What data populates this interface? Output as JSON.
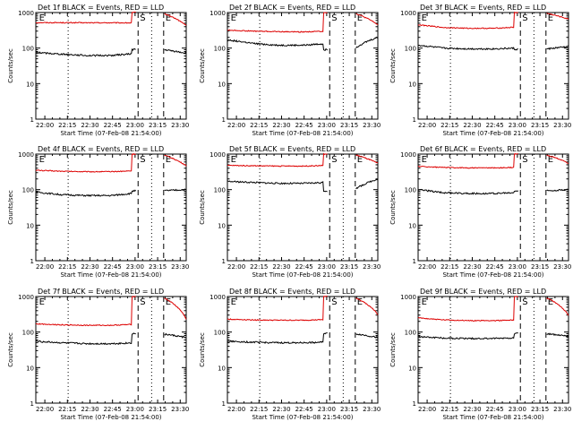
{
  "panel_titles": [
    "Det 1f BLACK = Events, RED = LLD",
    "Det 2f BLACK = Events, RED = LLD",
    "Det 3f BLACK = Events, RED = LLD",
    "Det 4f BLACK = Events, RED = LLD",
    "Det 5f BLACK = Events, RED = LLD",
    "Det 6f BLACK = Events, RED = LLD",
    "Det 7f BLACK = Events, RED = LLD",
    "Det 8f BLACK = Events, RED = LLD",
    "Det 9f BLACK = Events, RED = LLD"
  ],
  "colors": {
    "events": "#000000",
    "lld": "#dd0000",
    "axes": "#000000",
    "background": "#ffffff"
  },
  "chart_data": {
    "type": "line",
    "layout": "3x3 small multiples",
    "xlabel": "Start Time (07-Feb-08 21:54:00)",
    "ylabel": "Counts/sec",
    "x_tick_labels": [
      "22:00",
      "22:15",
      "22:30",
      "22:45",
      "23:00",
      "23:15",
      "23:30"
    ],
    "x_ticks_min": [
      6,
      21,
      36,
      51,
      66,
      81,
      96
    ],
    "xlim_min": [
      0,
      100
    ],
    "ylim": [
      1,
      1000
    ],
    "yscale": "log",
    "y_tick_labels": [
      "1",
      "10",
      "100",
      "1000"
    ],
    "y_ticks": [
      1,
      10,
      100,
      1000
    ],
    "markers": [
      {
        "label": "E",
        "x_min": 1,
        "style": "none"
      },
      {
        "label": "",
        "x_min": 21.5,
        "style": "dotted"
      },
      {
        "label": "S",
        "x_min": 68,
        "style": "dashed"
      },
      {
        "label": "",
        "x_min": 77,
        "style": "dotted"
      },
      {
        "label": "E",
        "x_min": 85,
        "style": "dashed"
      }
    ],
    "series_names": [
      "Events",
      "LLD"
    ],
    "panels": [
      {
        "detector": "1f",
        "events": [
          75,
          68,
          62,
          62,
          70,
          92,
          72
        ],
        "lld": [
          520,
          520,
          515,
          515,
          510,
          1000,
          430
        ]
      },
      {
        "detector": "2f",
        "events": [
          170,
          135,
          120,
          120,
          135,
          90,
          200
        ],
        "lld": [
          320,
          300,
          290,
          285,
          300,
          1000,
          450
        ]
      },
      {
        "detector": "3f",
        "events": [
          120,
          100,
          95,
          95,
          100,
          92,
          110
        ],
        "lld": [
          450,
          380,
          360,
          360,
          390,
          1000,
          650
        ]
      },
      {
        "detector": "4f",
        "events": [
          85,
          72,
          68,
          68,
          80,
          92,
          100
        ],
        "lld": [
          350,
          330,
          320,
          320,
          340,
          1000,
          470
        ]
      },
      {
        "detector": "5f",
        "events": [
          170,
          160,
          150,
          150,
          160,
          92,
          200
        ],
        "lld": [
          480,
          470,
          460,
          460,
          480,
          1000,
          550
        ]
      },
      {
        "detector": "6f",
        "events": [
          100,
          82,
          78,
          78,
          82,
          92,
          100
        ],
        "lld": [
          450,
          420,
          410,
          410,
          420,
          1000,
          550
        ]
      },
      {
        "detector": "7f",
        "events": [
          55,
          50,
          47,
          47,
          50,
          90,
          70
        ],
        "lld": [
          170,
          160,
          155,
          155,
          165,
          1000,
          230
        ]
      },
      {
        "detector": "8f",
        "events": [
          55,
          52,
          50,
          50,
          52,
          92,
          70
        ],
        "lld": [
          230,
          220,
          215,
          215,
          225,
          1000,
          310
        ]
      },
      {
        "detector": "9f",
        "events": [
          75,
          68,
          66,
          66,
          70,
          92,
          75
        ],
        "lld": [
          250,
          220,
          210,
          210,
          220,
          1000,
          300
        ]
      }
    ]
  }
}
